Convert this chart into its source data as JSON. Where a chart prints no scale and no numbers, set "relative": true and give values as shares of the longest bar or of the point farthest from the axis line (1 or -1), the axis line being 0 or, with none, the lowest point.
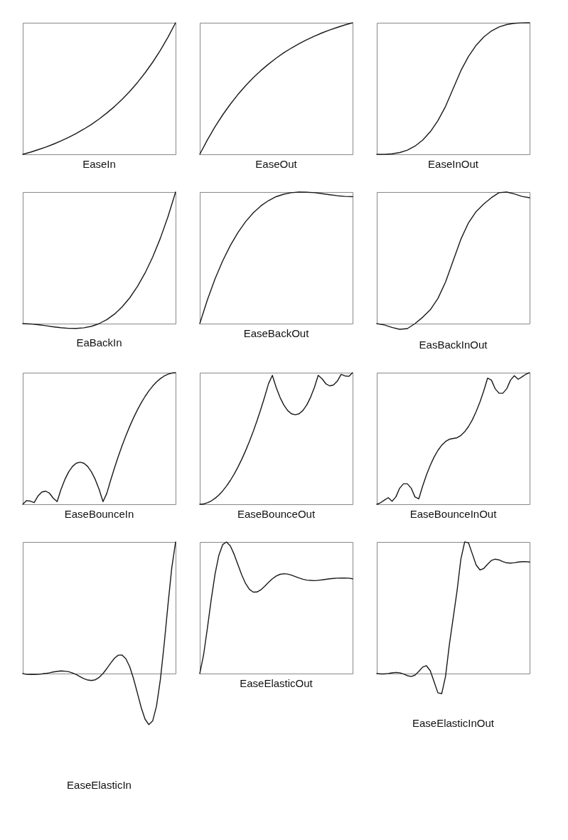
{
  "chart_data": [
    {
      "type": "line",
      "relative": true,
      "title": "EaseIn",
      "categories": [
        null,
        null,
        null,
        null,
        null,
        null,
        null,
        null,
        null,
        null,
        null,
        null,
        null,
        null,
        null,
        null,
        null,
        null,
        null,
        null,
        null
      ],
      "series": [
        {
          "color": "#1a1a1a",
          "values": [
            0,
            0.016,
            0.035,
            0.055,
            0.077,
            0.102,
            0.129,
            0.159,
            0.192,
            0.228,
            0.269,
            0.314,
            0.363,
            0.418,
            0.478,
            0.545,
            0.619,
            0.7,
            0.79,
            0.89,
            1
          ]
        }
      ]
    },
    {
      "type": "line",
      "relative": true,
      "title": "EaseOut",
      "categories": [
        null,
        null,
        null,
        null,
        null,
        null,
        null,
        null,
        null,
        null,
        null,
        null,
        null,
        null,
        null,
        null,
        null,
        null,
        null,
        null,
        null
      ],
      "series": [
        {
          "color": "#1a1a1a",
          "values": [
            0,
            0.11,
            0.21,
            0.3,
            0.381,
            0.455,
            0.522,
            0.582,
            0.637,
            0.686,
            0.731,
            0.772,
            0.808,
            0.841,
            0.871,
            0.898,
            0.923,
            0.945,
            0.965,
            0.984,
            1
          ]
        }
      ]
    },
    {
      "type": "line",
      "relative": true,
      "title": "EaseInOut",
      "categories": [
        null,
        null,
        null,
        null,
        null,
        null,
        null,
        null,
        null,
        null,
        null,
        null,
        null,
        null,
        null,
        null,
        null,
        null,
        null,
        null,
        null
      ],
      "series": [
        {
          "color": "#1a1a1a",
          "values": [
            0,
            0.0005,
            0.004,
            0.0135,
            0.032,
            0.0625,
            0.108,
            0.1715,
            0.256,
            0.3645,
            0.5,
            0.6355,
            0.744,
            0.8285,
            0.892,
            0.9375,
            0.968,
            0.9865,
            0.996,
            0.9995,
            1
          ]
        }
      ]
    },
    {
      "type": "line",
      "relative": true,
      "title": "EaBackIn",
      "categories": [
        null,
        null,
        null,
        null,
        null,
        null,
        null,
        null,
        null,
        null,
        null,
        null,
        null,
        null,
        null,
        null,
        null,
        null,
        null,
        null,
        null
      ],
      "series": [
        {
          "color": "#1a1a1a",
          "values": [
            0,
            -0.0023,
            -0.008,
            -0.0158,
            -0.024,
            -0.0313,
            -0.036,
            -0.0368,
            -0.032,
            -0.0203,
            0,
            0.0303,
            0.072,
            0.1268,
            0.196,
            0.2813,
            0.384,
            0.5058,
            0.648,
            0.8123,
            1
          ]
        }
      ]
    },
    {
      "type": "line",
      "relative": true,
      "title": "EaseBackOut",
      "categories": [
        null,
        null,
        null,
        null,
        null,
        null,
        null,
        null,
        null,
        null,
        null,
        null,
        null,
        null,
        null,
        null,
        null,
        null,
        null,
        null,
        null
      ],
      "series": [
        {
          "color": "#1a1a1a",
          "values": [
            0,
            0.181,
            0.34,
            0.477,
            0.594,
            0.693,
            0.775,
            0.842,
            0.895,
            0.935,
            0.965,
            0.984,
            0.995,
            1,
            0.999,
            0.995,
            0.988,
            0.98,
            0.972,
            0.967,
            0.965
          ]
        }
      ]
    },
    {
      "type": "line",
      "relative": true,
      "title": "EasBackInOut",
      "categories": [
        null,
        null,
        null,
        null,
        null,
        null,
        null,
        null,
        null,
        null,
        null,
        null,
        null,
        null,
        null,
        null,
        null,
        null,
        null,
        null,
        null
      ],
      "series": [
        {
          "color": "#1a1a1a",
          "values": [
            0,
            -0.01,
            -0.029,
            -0.043,
            -0.038,
            0,
            0.048,
            0.105,
            0.191,
            0.316,
            0.478,
            0.641,
            0.766,
            0.852,
            0.909,
            0.957,
            0.995,
            1,
            0.986,
            0.967,
            0.957
          ]
        }
      ]
    },
    {
      "type": "line",
      "relative": true,
      "title": "EaseBounceIn",
      "categories": [
        null,
        null,
        null,
        null,
        null,
        null,
        null,
        null,
        null,
        null,
        null,
        null,
        null,
        null,
        null,
        null,
        null,
        null,
        null,
        null,
        null,
        null,
        null,
        null,
        null,
        null,
        null,
        null,
        null,
        null,
        null,
        null,
        null,
        null,
        null,
        null,
        null,
        null,
        null,
        null,
        null
      ],
      "series": [
        {
          "color": "#1a1a1a",
          "values": [
            0,
            0.028,
            0.024,
            0.013,
            0.064,
            0.093,
            0.1,
            0.084,
            0.046,
            0.02,
            0.112,
            0.187,
            0.245,
            0.287,
            0.312,
            0.32,
            0.312,
            0.287,
            0.245,
            0.187,
            0.112,
            0.02,
            0.0833,
            0.1823,
            0.2757,
            0.3634,
            0.4454,
            0.5218,
            0.5926,
            0.6576,
            0.7171,
            0.7708,
            0.8189,
            0.8614,
            0.8981,
            0.9293,
            0.9547,
            0.9745,
            0.9887,
            0.9972,
            1
          ]
        }
      ]
    },
    {
      "type": "line",
      "relative": true,
      "title": "EaseBounceOut",
      "categories": [
        null,
        null,
        null,
        null,
        null,
        null,
        null,
        null,
        null,
        null,
        null,
        null,
        null,
        null,
        null,
        null,
        null,
        null,
        null,
        null,
        null,
        null,
        null,
        null,
        null,
        null,
        null,
        null,
        null,
        null,
        null,
        null,
        null,
        null,
        null,
        null,
        null,
        null,
        null,
        null,
        null
      ],
      "series": [
        {
          "color": "#1a1a1a",
          "values": [
            0,
            0.0028,
            0.0113,
            0.0255,
            0.0453,
            0.0707,
            0.1019,
            0.1386,
            0.1811,
            0.2292,
            0.2829,
            0.3424,
            0.4074,
            0.4782,
            0.5546,
            0.6366,
            0.7243,
            0.8177,
            0.9167,
            0.98,
            0.888,
            0.813,
            0.755,
            0.713,
            0.688,
            0.68,
            0.688,
            0.713,
            0.755,
            0.813,
            0.888,
            0.98,
            0.954,
            0.916,
            0.9,
            0.907,
            0.936,
            0.987,
            0.976,
            0.972,
            1
          ]
        }
      ]
    },
    {
      "type": "line",
      "relative": true,
      "title": "EaseBounceInOut",
      "categories": [
        null,
        null,
        null,
        null,
        null,
        null,
        null,
        null,
        null,
        null,
        null,
        null,
        null,
        null,
        null,
        null,
        null,
        null,
        null,
        null,
        null,
        null,
        null,
        null,
        null,
        null,
        null,
        null,
        null,
        null,
        null,
        null,
        null,
        null,
        null,
        null,
        null,
        null,
        null,
        null,
        null
      ],
      "series": [
        {
          "color": "#1a1a1a",
          "values": [
            0,
            0.012,
            0.032,
            0.05,
            0.023,
            0.056,
            0.1225,
            0.156,
            0.156,
            0.1225,
            0.056,
            0.0417,
            0.1379,
            0.2227,
            0.2963,
            0.3586,
            0.4095,
            0.4491,
            0.4774,
            0.4944,
            0.5,
            0.5056,
            0.5226,
            0.5509,
            0.5905,
            0.6414,
            0.7037,
            0.7773,
            0.8621,
            0.9583,
            0.944,
            0.8775,
            0.844,
            0.844,
            0.8775,
            0.944,
            0.977,
            0.95,
            0.968,
            0.988,
            1
          ]
        }
      ]
    },
    {
      "type": "line",
      "relative": true,
      "title": "EaseElasticIn",
      "categories": [
        null,
        null,
        null,
        null,
        null,
        null,
        null,
        null,
        null,
        null,
        null,
        null,
        null,
        null,
        null,
        null,
        null,
        null,
        null,
        null,
        null,
        null,
        null,
        null,
        null,
        null,
        null,
        null,
        null,
        null,
        null,
        null,
        null,
        null,
        null,
        null,
        null,
        null,
        null,
        null,
        null
      ],
      "series": [
        {
          "color": "#1a1a1a",
          "values": [
            0,
            -0.006,
            -0.007,
            -0.007,
            -0.006,
            -0.003,
            0.001,
            0.006,
            0.012,
            0.016,
            0.02,
            0.018,
            0.014,
            0.005,
            -0.008,
            -0.023,
            -0.038,
            -0.049,
            -0.053,
            -0.047,
            -0.029,
            0,
            0.038,
            0.079,
            0.116,
            0.14,
            0.141,
            0.112,
            0.051,
            -0.039,
            -0.148,
            -0.258,
            -0.346,
            -0.388,
            -0.36,
            -0.248,
            -0.049,
            0.219,
            0.521,
            0.803,
            1
          ]
        }
      ]
    },
    {
      "type": "line",
      "relative": true,
      "title": "EaseElasticOut",
      "categories": [
        null,
        null,
        null,
        null,
        null,
        null,
        null,
        null,
        null,
        null,
        null,
        null,
        null,
        null,
        null,
        null,
        null,
        null,
        null,
        null,
        null,
        null,
        null,
        null,
        null,
        null,
        null,
        null,
        null,
        null,
        null,
        null,
        null,
        null,
        null,
        null,
        null,
        null,
        null,
        null,
        null
      ],
      "series": [
        {
          "color": "#1a1a1a",
          "values": [
            0,
            0.142,
            0.345,
            0.563,
            0.756,
            0.899,
            0.98,
            1,
            0.97,
            0.906,
            0.827,
            0.749,
            0.684,
            0.64,
            0.619,
            0.62,
            0.637,
            0.664,
            0.693,
            0.72,
            0.741,
            0.754,
            0.759,
            0.756,
            0.748,
            0.737,
            0.726,
            0.717,
            0.71,
            0.708,
            0.706,
            0.709,
            0.712,
            0.716,
            0.72,
            0.723,
            0.725,
            0.726,
            0.726,
            0.725,
            0.72
          ]
        }
      ]
    },
    {
      "type": "line",
      "relative": true,
      "title": "EaseElasticInOut",
      "categories": [
        null,
        null,
        null,
        null,
        null,
        null,
        null,
        null,
        null,
        null,
        null,
        null,
        null,
        null,
        null,
        null,
        null,
        null,
        null,
        null,
        null,
        null,
        null,
        null,
        null,
        null,
        null,
        null,
        null,
        null,
        null,
        null,
        null,
        null,
        null,
        null,
        null,
        null,
        null,
        null,
        null
      ],
      "series": [
        {
          "color": "#1a1a1a",
          "values": [
            0,
            -0.003,
            -0.0025,
            0.0004,
            0.0051,
            0.0085,
            0.0059,
            -0.0034,
            -0.0161,
            -0.0225,
            -0.0123,
            0.0161,
            0.0492,
            0.0597,
            0.0216,
            -0.0627,
            -0.1466,
            -0.1525,
            -0.0208,
            0.2208,
            0.4237,
            0.6267,
            0.8682,
            1,
            0.9941,
            0.9102,
            0.8258,
            0.7877,
            0.7983,
            0.8314,
            0.8597,
            0.8699,
            0.8636,
            0.8508,
            0.8415,
            0.839,
            0.8424,
            0.847,
            0.85,
            0.8504,
            0.8475
          ]
        }
      ]
    }
  ]
}
